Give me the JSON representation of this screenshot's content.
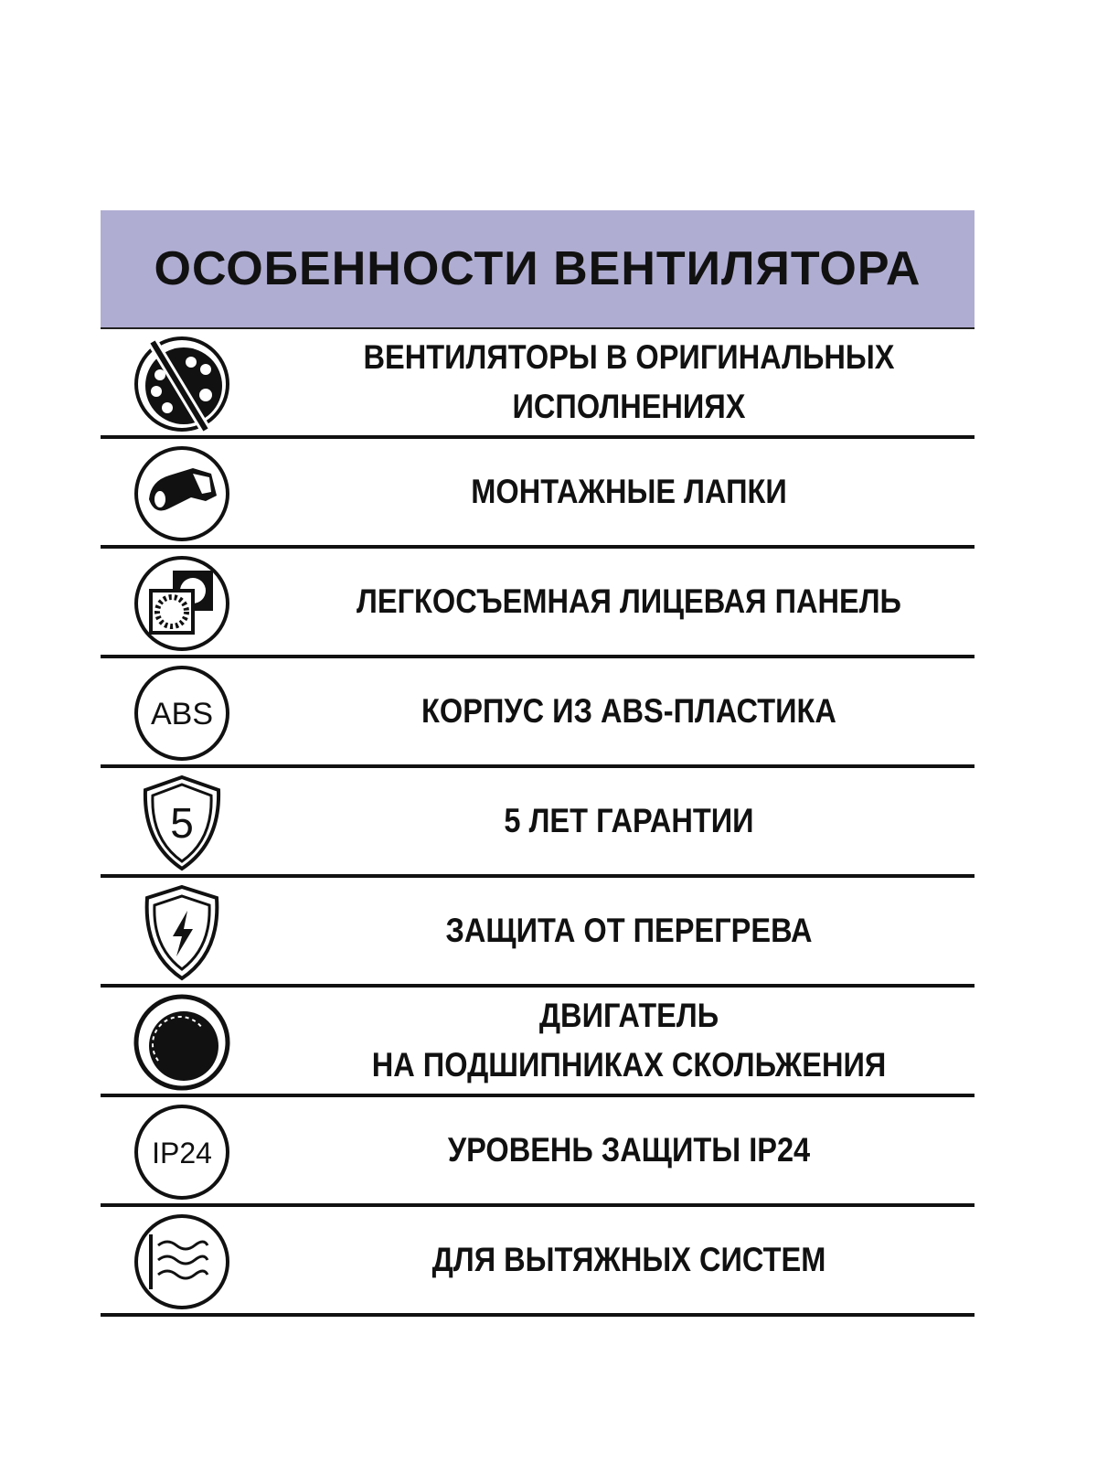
{
  "header": {
    "title": "ОСОБЕННОСТИ ВЕНТИЛЯТОРА",
    "background": "#b0add3"
  },
  "features": [
    {
      "icon": "palette-icon",
      "label_line1": "ВЕНТИЛЯТОРЫ В ОРИГИНАЛЬНЫХ",
      "label_line2": "ИСПОЛНЕНИЯХ"
    },
    {
      "icon": "mounting-bracket-icon",
      "label_line1": "МОНТАЖНЫЕ ЛАПКИ"
    },
    {
      "icon": "removable-panel-icon",
      "label_line1": "ЛЕГКОСЪЕМНАЯ ЛИЦЕВАЯ ПАНЕЛЬ"
    },
    {
      "icon": "abs-icon",
      "icon_text": "ABS",
      "label_line1": "КОРПУС ИЗ ABS-ПЛАСТИКА"
    },
    {
      "icon": "warranty-shield-icon",
      "icon_text": "5",
      "label_line1": "5 ЛЕТ ГАРАНТИИ"
    },
    {
      "icon": "lightning-shield-icon",
      "label_line1": "ЗАЩИТА ОТ ПЕРЕГРЕВА"
    },
    {
      "icon": "motor-icon",
      "label_line1": "ДВИГАТЕЛЬ",
      "label_line2": "НА ПОДШИПНИКАХ СКОЛЬЖЕНИЯ"
    },
    {
      "icon": "ip24-icon",
      "icon_text": "IP24",
      "label_line1": "УРОВЕНЬ ЗАЩИТЫ IP24"
    },
    {
      "icon": "exhaust-airflow-icon",
      "label_line1": "ДЛЯ ВЫТЯЖНЫХ СИСТЕМ"
    }
  ]
}
